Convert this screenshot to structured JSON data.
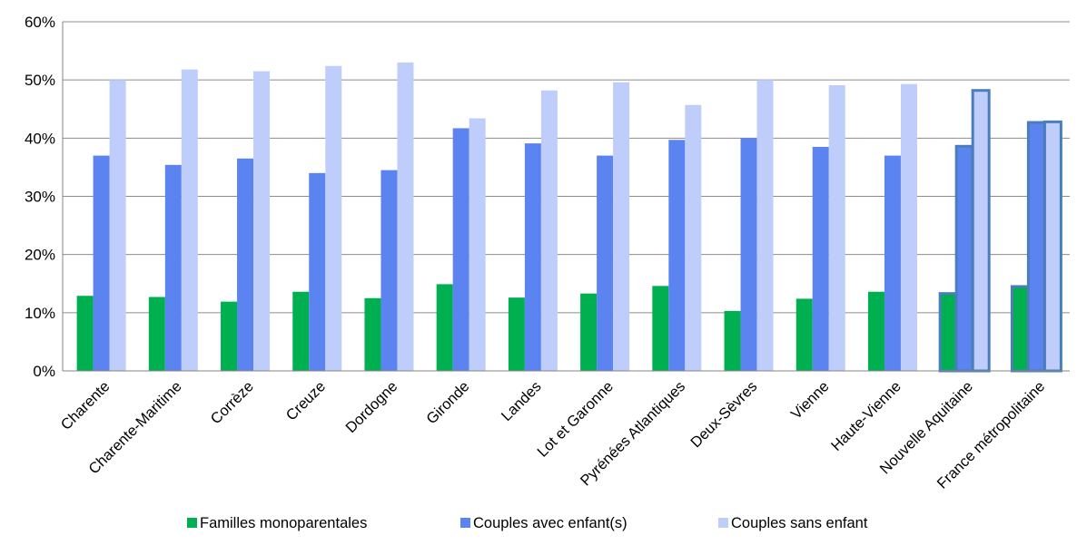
{
  "chart_data": {
    "type": "bar",
    "categories": [
      "Charente",
      "Charente-Maritime",
      "Corrèze",
      "Creuze",
      "Dordogne",
      "Gironde",
      "Landes",
      "Lot et Garonne",
      "Pyrénées Atlantiques",
      "Deux-Sèvres",
      "Vienne",
      "Haute-Vienne",
      "Nouvelle Aquitaine",
      "France métropolitaine"
    ],
    "series": [
      {
        "name": "Familles monoparentales",
        "color": "#00b050",
        "values": [
          12.9,
          12.7,
          11.9,
          13.6,
          12.5,
          14.9,
          12.6,
          13.3,
          14.6,
          10.3,
          12.4,
          13.6,
          13.3,
          14.5
        ]
      },
      {
        "name": "Couples avec enfant(s)",
        "color": "#5b84f1",
        "values": [
          37.0,
          35.4,
          36.5,
          34.0,
          34.5,
          41.7,
          39.1,
          37.0,
          39.7,
          40.0,
          38.5,
          37.0,
          38.6,
          42.7
        ]
      },
      {
        "name": "Couples sans enfant",
        "color": "#bfcdfb",
        "values": [
          50.0,
          51.8,
          51.5,
          52.4,
          53.0,
          43.4,
          48.2,
          49.6,
          45.7,
          50.0,
          49.1,
          49.3,
          48.2,
          42.8
        ]
      }
    ],
    "highlighted_categories": [
      "Nouvelle Aquitaine",
      "France métropolitaine"
    ],
    "highlight_border_color": "#4a7ebb",
    "y_ticks": [
      "0%",
      "10%",
      "20%",
      "30%",
      "40%",
      "50%",
      "60%"
    ],
    "ylim": [
      0,
      60
    ],
    "y_unit": "%",
    "grid": "horizontal",
    "legend_position": "bottom"
  }
}
